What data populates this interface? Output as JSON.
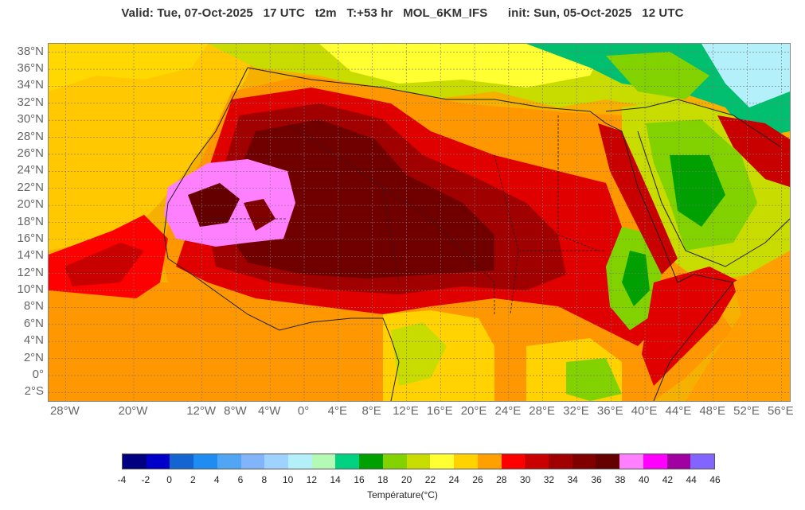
{
  "header": {
    "title": "Valid: Tue, 07-Oct-2025   17 UTC   t2m   T:+53 hr   MOL_6KM_IFS      init: Sun, 05-Oct-2025   12 UTC"
  },
  "map": {
    "lat_labels": [
      "38°N",
      "36°N",
      "34°N",
      "32°N",
      "30°N",
      "28°N",
      "26°N",
      "24°N",
      "22°N",
      "20°N",
      "18°N",
      "16°N",
      "14°N",
      "12°N",
      "10°N",
      "8°N",
      "6°N",
      "4°N",
      "2°N",
      "0°",
      "2°S"
    ],
    "lon_labels": [
      "28°W",
      "20°W",
      "12°W",
      "8°W",
      "4°W",
      "0°",
      "4°E",
      "8°E",
      "12°E",
      "16°E",
      "20°E",
      "24°E",
      "28°E",
      "32°E",
      "36°E",
      "40°E",
      "44°E",
      "48°E",
      "52°E",
      "56°E"
    ],
    "lon_values": [
      -28,
      -20,
      -12,
      -8,
      -4,
      0,
      4,
      8,
      12,
      16,
      20,
      24,
      28,
      32,
      36,
      40,
      44,
      48,
      52,
      56
    ],
    "lat_range": [
      -3,
      39
    ],
    "lon_range": [
      -30,
      57
    ]
  },
  "colorbar": {
    "label": "Température(°C)",
    "ticks": [
      "-4",
      "-2",
      "0",
      "2",
      "4",
      "6",
      "8",
      "10",
      "12",
      "14",
      "16",
      "18",
      "20",
      "22",
      "24",
      "26",
      "28",
      "30",
      "32",
      "34",
      "36",
      "38",
      "40",
      "42",
      "44",
      "46"
    ],
    "colors": [
      "#000080",
      "#0000c8",
      "#1464d2",
      "#1e8cf0",
      "#50a5f5",
      "#82b4fa",
      "#a0d2ff",
      "#b4f0fa",
      "#b4fab4",
      "#00d282",
      "#00a000",
      "#82d200",
      "#c8dc00",
      "#ffff32",
      "#ffd200",
      "#ffa000",
      "#ff0000",
      "#c80000",
      "#a00000",
      "#800000",
      "#640000",
      "#ff80ff",
      "#ff00ff",
      "#a000a0",
      "#8264ff"
    ]
  }
}
